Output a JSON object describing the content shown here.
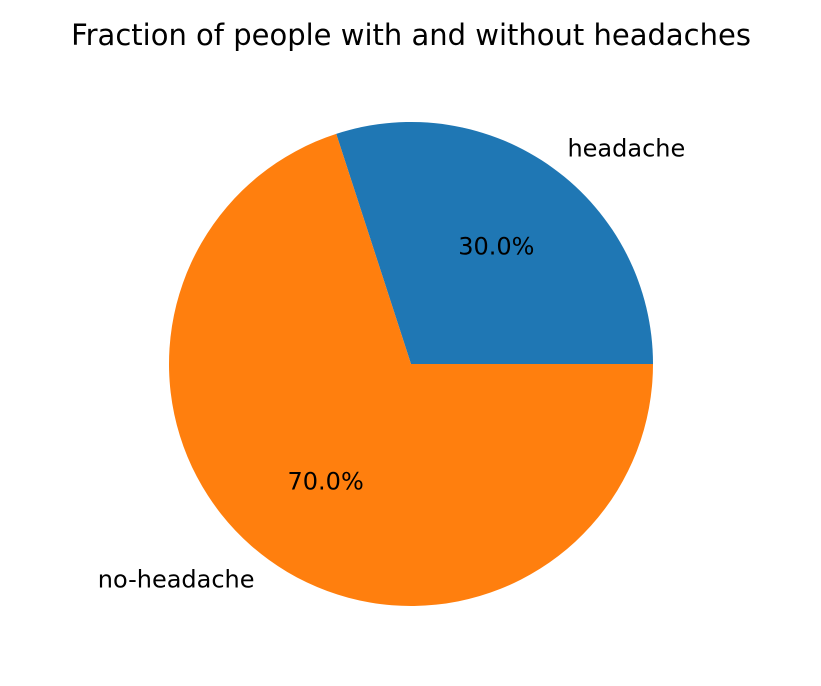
{
  "chart_data": {
    "type": "pie",
    "title": "Fraction of people with and without headaches",
    "slices": [
      {
        "label": "headache",
        "value": 30,
        "pct_label": "30.0%",
        "color": "#1f77b4"
      },
      {
        "label": "no-headache",
        "value": 70,
        "pct_label": "70.0%",
        "color": "#ff7f0e"
      }
    ],
    "start_angle_deg": 0,
    "direction": "counterclockwise",
    "legend": "none"
  }
}
